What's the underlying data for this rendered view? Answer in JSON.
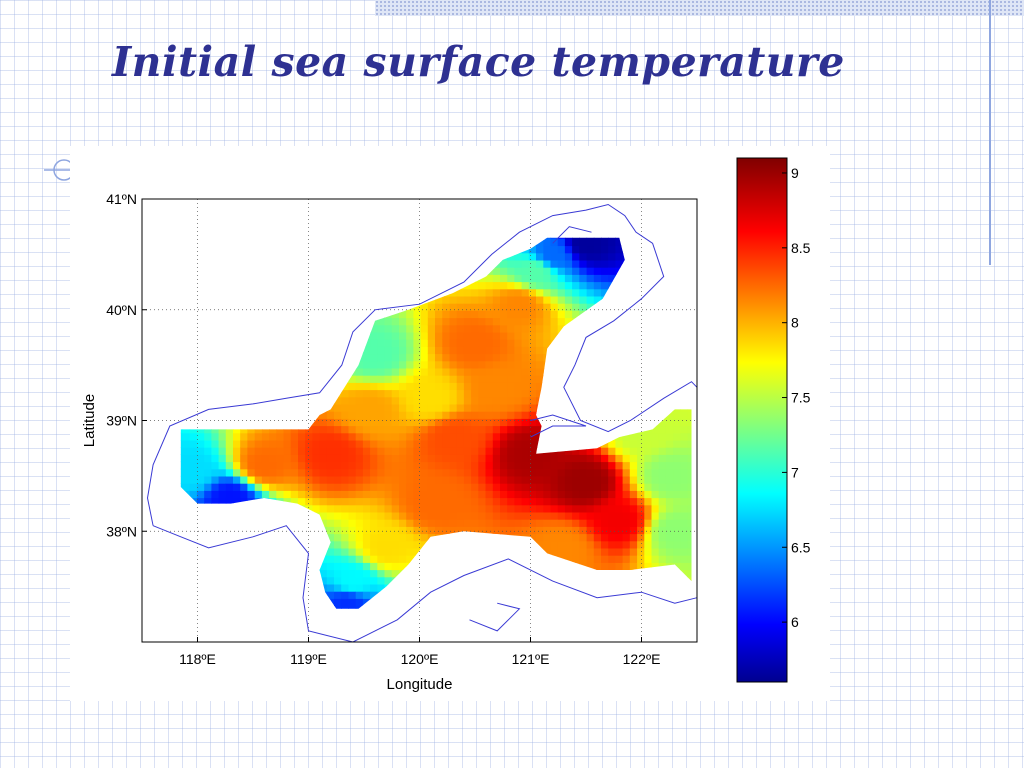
{
  "slide": {
    "title": "Initial sea surface temperature"
  },
  "chart_data": {
    "type": "heatmap",
    "title": "",
    "xlabel": "Longitude",
    "ylabel": "Latitude",
    "xlim": [
      117.5,
      122.5
    ],
    "ylim": [
      37,
      41
    ],
    "x_ticks": [
      118,
      119,
      120,
      121,
      122
    ],
    "x_tick_labels": [
      "118ºE",
      "119ºE",
      "120ºE",
      "121ºE",
      "122ºE"
    ],
    "y_ticks": [
      38,
      39,
      40,
      41
    ],
    "y_tick_labels": [
      "38ºN",
      "39ºN",
      "40ºN",
      "41ºN"
    ],
    "grid": true,
    "coastline_color": "#3a3ad4",
    "colormap": "jet",
    "colorbar": {
      "range": [
        5.6,
        9.1
      ],
      "ticks": [
        6,
        6.5,
        7,
        7.5,
        8,
        8.5,
        9
      ],
      "tick_labels": [
        "6",
        "6.5",
        "7",
        "7.5",
        "8",
        "8.5",
        "9"
      ]
    },
    "field_hotspots": [
      {
        "lon": 121.0,
        "lat": 38.7,
        "value": 8.95
      },
      {
        "lon": 121.5,
        "lat": 38.45,
        "value": 9.0
      },
      {
        "lon": 121.8,
        "lat": 38.1,
        "value": 8.7
      },
      {
        "lon": 119.2,
        "lat": 38.7,
        "value": 8.5
      },
      {
        "lon": 118.6,
        "lat": 38.6,
        "value": 8.3
      },
      {
        "lon": 120.3,
        "lat": 38.85,
        "value": 8.4
      },
      {
        "lon": 120.7,
        "lat": 39.3,
        "value": 8.2
      },
      {
        "lon": 120.5,
        "lat": 39.7,
        "value": 8.3
      },
      {
        "lon": 120.9,
        "lat": 40.05,
        "value": 8.2
      },
      {
        "lon": 120.1,
        "lat": 39.2,
        "value": 7.9
      },
      {
        "lon": 119.55,
        "lat": 39.1,
        "value": 8.1
      },
      {
        "lon": 120.15,
        "lat": 38.25,
        "value": 8.3
      },
      {
        "lon": 119.7,
        "lat": 37.85,
        "value": 7.9
      },
      {
        "lon": 119.4,
        "lat": 37.55,
        "value": 6.9
      },
      {
        "lon": 119.35,
        "lat": 37.35,
        "value": 6.2
      },
      {
        "lon": 118.3,
        "lat": 38.3,
        "value": 6.1
      },
      {
        "lon": 117.95,
        "lat": 38.55,
        "value": 6.8
      },
      {
        "lon": 122.25,
        "lat": 38.5,
        "value": 7.4
      },
      {
        "lon": 122.3,
        "lat": 38.0,
        "value": 7.4
      },
      {
        "lon": 122.0,
        "lat": 38.9,
        "value": 7.6
      },
      {
        "lon": 121.2,
        "lat": 40.5,
        "value": 6.4
      },
      {
        "lon": 121.5,
        "lat": 40.6,
        "value": 5.7
      },
      {
        "lon": 121.05,
        "lat": 40.35,
        "value": 7.2
      },
      {
        "lon": 119.6,
        "lat": 39.6,
        "value": 7.2
      },
      {
        "lon": 121.3,
        "lat": 37.85,
        "value": 8.2
      }
    ]
  }
}
